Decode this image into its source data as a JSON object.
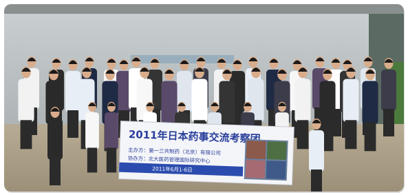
{
  "banner": {
    "title": "2011年日本药事交流考察团",
    "organizer": "主办方：第一三共制药（北京）有限公司",
    "co_organizer": "协办方：北大医药管理国际研究中心",
    "date": "2011年6月1-6日"
  }
}
